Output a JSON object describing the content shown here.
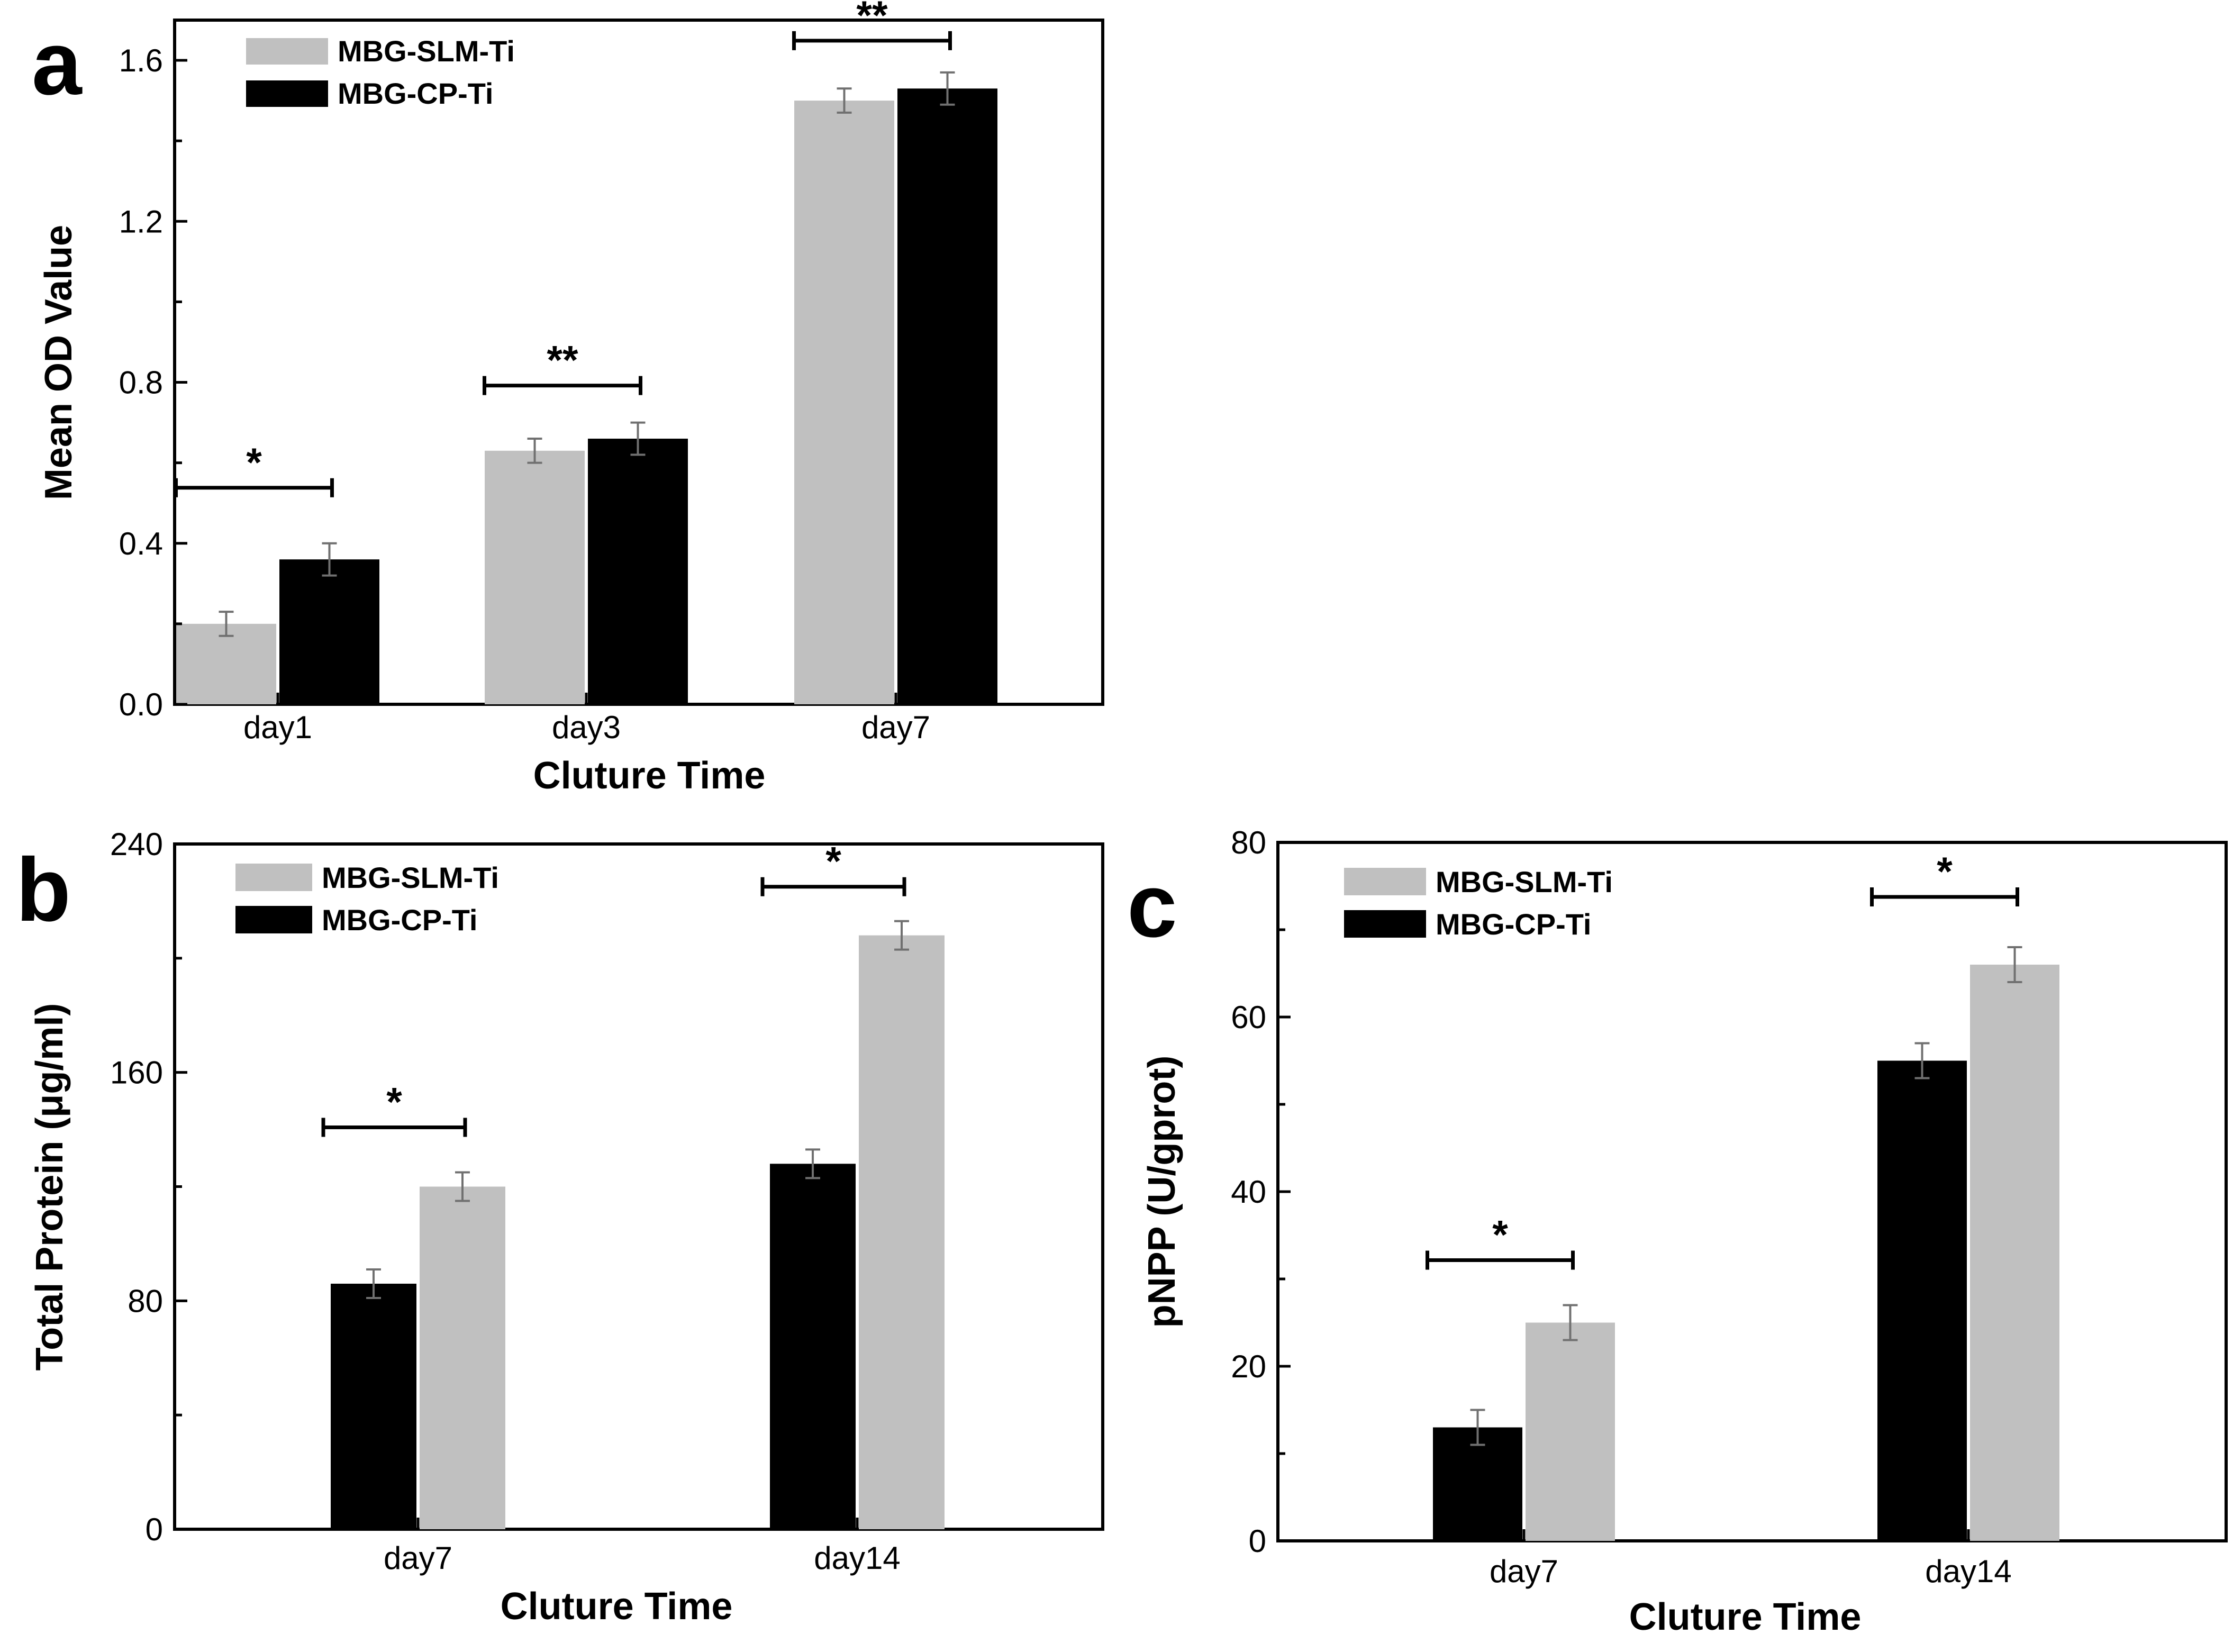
{
  "chart_data": [
    {
      "panel": "a",
      "type": "bar",
      "categories": [
        "day1",
        "day3",
        "day7"
      ],
      "series": [
        {
          "name": "MBG-SLM-Ti",
          "color": "#c0c0c0",
          "values": [
            0.2,
            0.63,
            1.5
          ],
          "errors": [
            0.03,
            0.03,
            0.03
          ]
        },
        {
          "name": "MBG-CP-Ti",
          "color": "#000000",
          "values": [
            0.36,
            0.66,
            1.53
          ],
          "errors": [
            0.04,
            0.04,
            0.04
          ]
        }
      ],
      "significance": [
        "*",
        "**",
        "**"
      ],
      "xlabel": "Cluture Time",
      "ylabel": "Mean OD Value",
      "ylim": [
        0,
        1.7
      ],
      "yticks": [
        0.0,
        0.4,
        0.8,
        1.2,
        1.6
      ],
      "ytick_labels": [
        "0.0",
        "0.4",
        "0.8",
        "1.2",
        "1.6"
      ],
      "minor_step": 0.2,
      "legend_position": "top-left"
    },
    {
      "panel": "b",
      "type": "bar",
      "categories": [
        "day7",
        "day14"
      ],
      "series": [
        {
          "name": "MBG-CP-Ti",
          "color": "#000000",
          "values": [
            86,
            128
          ],
          "errors": [
            5,
            5
          ]
        },
        {
          "name": "MBG-SLM-Ti",
          "color": "#c0c0c0",
          "values": [
            120,
            208
          ],
          "errors": [
            5,
            5
          ]
        }
      ],
      "legend_order": [
        "MBG-SLM-Ti",
        "MBG-CP-Ti"
      ],
      "significance": [
        "*",
        "*"
      ],
      "xlabel": "Cluture Time",
      "ylabel": "Total Protein (μg/ml)",
      "ylim": [
        0,
        240
      ],
      "yticks": [
        0,
        80,
        160,
        240
      ],
      "ytick_labels": [
        "0",
        "80",
        "160",
        "240"
      ],
      "minor_step": 40,
      "legend_position": "top-left"
    },
    {
      "panel": "c",
      "type": "bar",
      "categories": [
        "day7",
        "day14"
      ],
      "series": [
        {
          "name": "MBG-CP-Ti",
          "color": "#000000",
          "values": [
            13,
            55
          ],
          "errors": [
            2,
            2
          ]
        },
        {
          "name": "MBG-SLM-Ti",
          "color": "#c0c0c0",
          "values": [
            25,
            66
          ],
          "errors": [
            2,
            2
          ]
        }
      ],
      "legend_order": [
        "MBG-SLM-Ti",
        "MBG-CP-Ti"
      ],
      "significance": [
        "*",
        "*"
      ],
      "xlabel": "Cluture Time",
      "ylabel": "pNPP (U/gprot)",
      "ylim": [
        0,
        80
      ],
      "yticks": [
        0,
        20,
        40,
        60,
        80
      ],
      "ytick_labels": [
        "0",
        "20",
        "40",
        "60",
        "80"
      ],
      "minor_step": 10,
      "legend_position": "top-left"
    }
  ]
}
